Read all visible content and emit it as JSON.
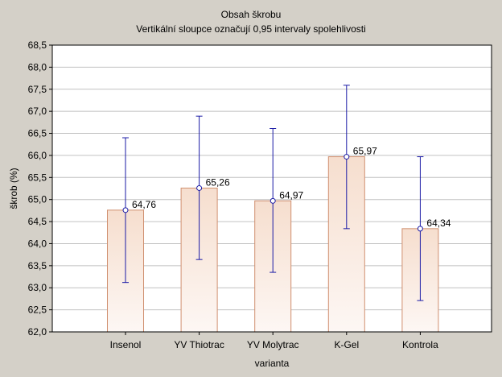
{
  "chart_data": {
    "type": "bar",
    "title": "Obsah škrobu",
    "subtitle": "Vertikální sloupce označují 0,95 intervaly spolehlivosti",
    "xlabel": "varianta",
    "ylabel": "škrob (%)",
    "ylim": [
      62.0,
      68.5
    ],
    "yticks": [
      "62,0",
      "62,5",
      "63,0",
      "63,5",
      "64,0",
      "64,5",
      "65,0",
      "65,5",
      "66,0",
      "66,5",
      "67,0",
      "67,5",
      "68,0",
      "68,5"
    ],
    "grid": true,
    "categories": [
      "Insenol",
      "YV Thiotrac",
      "YV Molytrac",
      "K-Gel",
      "Kontrola"
    ],
    "values": [
      64.76,
      65.26,
      64.97,
      65.97,
      64.34
    ],
    "value_labels": [
      "64,76",
      "65,26",
      "64,97",
      "65,97",
      "64,34"
    ],
    "ci_low": [
      63.12,
      63.64,
      63.35,
      64.34,
      62.71
    ],
    "ci_high": [
      66.4,
      66.89,
      66.61,
      67.59,
      65.97
    ],
    "colors": {
      "bar_top": "#f6dece",
      "bar_bottom": "#fdf7f4",
      "bar_edge": "#d09070",
      "error_bar": "#1a1aa6",
      "grid": "#c0c0c0",
      "plot_bg": "#ffffff",
      "page_bg": "#d4d0c8"
    }
  }
}
